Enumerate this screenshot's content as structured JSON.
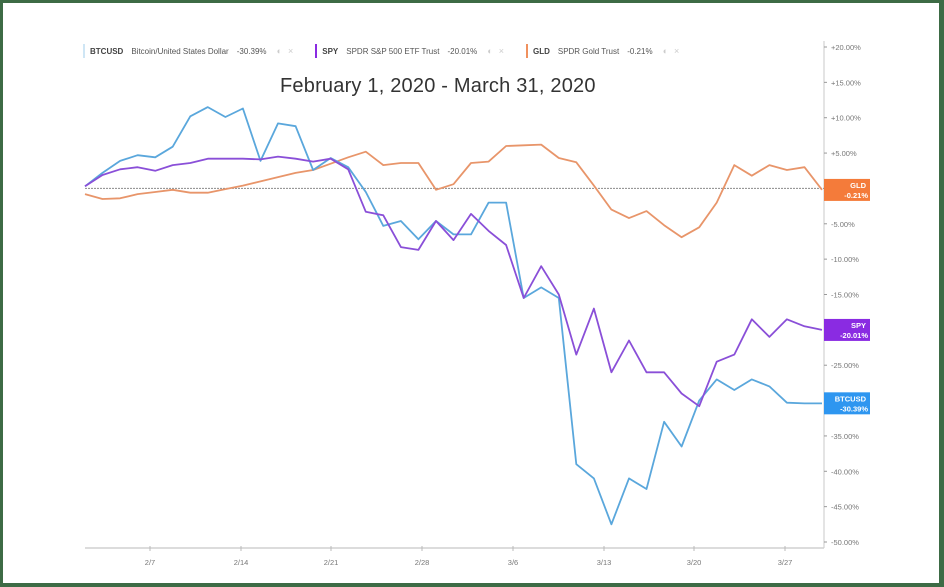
{
  "chart_data": {
    "type": "line",
    "title": "February 1, 2020 - March 31, 2020",
    "xlabel": "",
    "ylabel": "",
    "ylim": [
      -50,
      20
    ],
    "yticks": [
      "+20.00%",
      "+15.00%",
      "+10.00%",
      "+5.00%",
      "-5.00%",
      "-10.00%",
      "-15.00%",
      "-20.00%",
      "-25.00%",
      "-30.00%",
      "-35.00%",
      "-40.00%",
      "-45.00%",
      "-50.00%"
    ],
    "xticks": [
      "2/7",
      "2/14",
      "2/21",
      "2/28",
      "3/6",
      "3/13",
      "3/20",
      "3/27"
    ],
    "grid": false,
    "legend_position": "top",
    "zero_line": true,
    "series": [
      {
        "name": "BTCUSD",
        "description": "Bitcoin/United States Dollar",
        "final": "-30.39%",
        "color": "#5aa7dc",
        "x": [
          0,
          1,
          2,
          3,
          4,
          5,
          6,
          7,
          8,
          9,
          10,
          11,
          12,
          13,
          14,
          15,
          16,
          17,
          18,
          19,
          20,
          21,
          22,
          23,
          24,
          25,
          26,
          27,
          28,
          29,
          30,
          31,
          32,
          33,
          34,
          35,
          36,
          37,
          38,
          39,
          40,
          41,
          42
        ],
        "values": [
          0.3,
          2.2,
          3.9,
          4.7,
          4.4,
          5.9,
          10.2,
          11.5,
          10.1,
          11.3,
          3.9,
          9.2,
          8.8,
          2.6,
          4.3,
          3.0,
          -0.5,
          -5.3,
          -4.6,
          -7.2,
          -4.6,
          -6.5,
          -6.5,
          -2.0,
          -2.0,
          -15.5,
          -14.0,
          -15.5,
          -39.0,
          -41.0,
          -47.5,
          -41.0,
          -42.5,
          -33.0,
          -36.5,
          -30.0,
          -27.0,
          -28.5,
          -27.0,
          -28.0,
          -30.3,
          -30.4,
          -30.4
        ]
      },
      {
        "name": "SPY",
        "description": "SPDR S&P 500 ETF Trust",
        "final": "-20.01%",
        "color": "#8a4fd8",
        "x": [
          0,
          1,
          2,
          3,
          4,
          5,
          6,
          7,
          8,
          9,
          10,
          11,
          12,
          13,
          14,
          15,
          16,
          17,
          18,
          19,
          20,
          21,
          22,
          23,
          24,
          25,
          26,
          27,
          28,
          29,
          30,
          31,
          32,
          33,
          34,
          35,
          36,
          37,
          38,
          39,
          40,
          41,
          42
        ],
        "values": [
          0.3,
          1.9,
          2.7,
          3.0,
          2.5,
          3.3,
          3.6,
          4.2,
          4.2,
          4.2,
          4.1,
          4.5,
          4.2,
          3.8,
          4.2,
          2.7,
          -3.3,
          -3.8,
          -8.3,
          -8.7,
          -4.6,
          -7.3,
          -3.6,
          -6.0,
          -8.0,
          -15.5,
          -11.0,
          -15.0,
          -23.5,
          -17.0,
          -26.0,
          -21.5,
          -26.0,
          -26.0,
          -29.0,
          -30.8,
          -24.5,
          -23.5,
          -18.5,
          -21.0,
          -18.5,
          -19.5,
          -20.0
        ]
      },
      {
        "name": "GLD",
        "description": "SPDR Gold Trust",
        "final": "-0.21%",
        "color": "#e8956a",
        "x": [
          0,
          1,
          2,
          3,
          4,
          5,
          6,
          7,
          8,
          9,
          10,
          11,
          12,
          13,
          14,
          15,
          16,
          17,
          18,
          19,
          20,
          21,
          22,
          23,
          24,
          25,
          26,
          27,
          28,
          29,
          30,
          31,
          32,
          33,
          34,
          35,
          36,
          37,
          38,
          39,
          40,
          41,
          42
        ],
        "values": [
          -0.8,
          -1.5,
          -1.4,
          -0.8,
          -0.5,
          -0.2,
          -0.6,
          -0.6,
          -0.1,
          0.4,
          1.0,
          1.6,
          2.2,
          2.6,
          3.5,
          4.4,
          5.2,
          3.3,
          3.6,
          3.6,
          -0.2,
          0.6,
          3.6,
          3.8,
          6.0,
          6.1,
          6.2,
          4.3,
          3.7,
          0.4,
          -3.0,
          -4.2,
          -3.2,
          -5.2,
          -6.9,
          -5.5,
          -2.0,
          3.3,
          1.8,
          3.3,
          2.6,
          3.0,
          -0.2
        ]
      }
    ]
  },
  "legend": {
    "items": [
      {
        "symbol": "BTCUSD",
        "name": "Bitcoin/United States Dollar",
        "value": "-30.39%",
        "color": "#cfe6f5"
      },
      {
        "symbol": "SPY",
        "name": "SPDR S&P 500 ETF Trust",
        "value": "-20.01%",
        "color": "#8a2be2"
      },
      {
        "symbol": "GLD",
        "name": "SPDR Gold Trust",
        "value": "-0.21%",
        "color": "#f0915e"
      }
    ],
    "controls": {
      "visibility": "◐",
      "close": "×"
    }
  },
  "badges": [
    {
      "line1": "GLD",
      "line2": "-0.21%",
      "color": "#f47b3a"
    },
    {
      "line1": "SPY",
      "line2": "-20.01%",
      "color": "#8a2be2"
    },
    {
      "line1": "BTCUSD",
      "line2": "-30.39%",
      "color": "#2e96f0"
    }
  ],
  "footer": {
    "partial_text": "—"
  }
}
